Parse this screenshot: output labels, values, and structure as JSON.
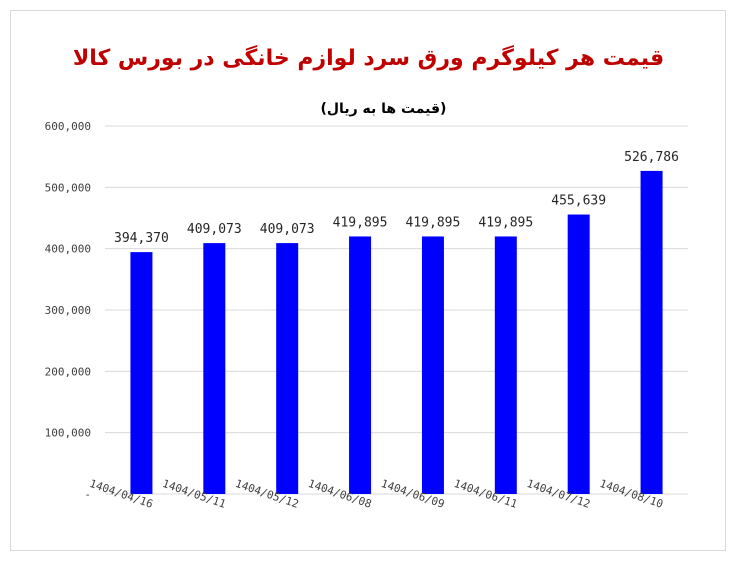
{
  "chart_data": {
    "type": "bar",
    "title": "قیمت هر کیلوگرم ورق سرد لوازم خانگی در بورس کالا",
    "subtitle": "(قیمت ها به ریال)",
    "categories": [
      "1404/04/16",
      "1404/05/11",
      "1404/05/12",
      "1404/06/08",
      "1404/06/09",
      "1404/06/11",
      "1404/07/12",
      "1404/08/10"
    ],
    "values": [
      394370,
      409073,
      409073,
      419895,
      419895,
      419895,
      455639,
      526786
    ],
    "data_labels": [
      "394,370",
      "409,073",
      "409,073",
      "419,895",
      "419,895",
      "419,895",
      "455,639",
      "526,786"
    ],
    "ylim": [
      0,
      600000
    ],
    "yticks": [
      0,
      100000,
      200000,
      300000,
      400000,
      500000,
      600000
    ],
    "ytick_labels": [
      "-",
      "100,000",
      "200,000",
      "300,000",
      "400,000",
      "500,000",
      "600,000"
    ],
    "xlabel": "",
    "ylabel": "",
    "grid": true,
    "legend": "none",
    "bar_color": "#0000ff",
    "title_color": "#c00000"
  }
}
